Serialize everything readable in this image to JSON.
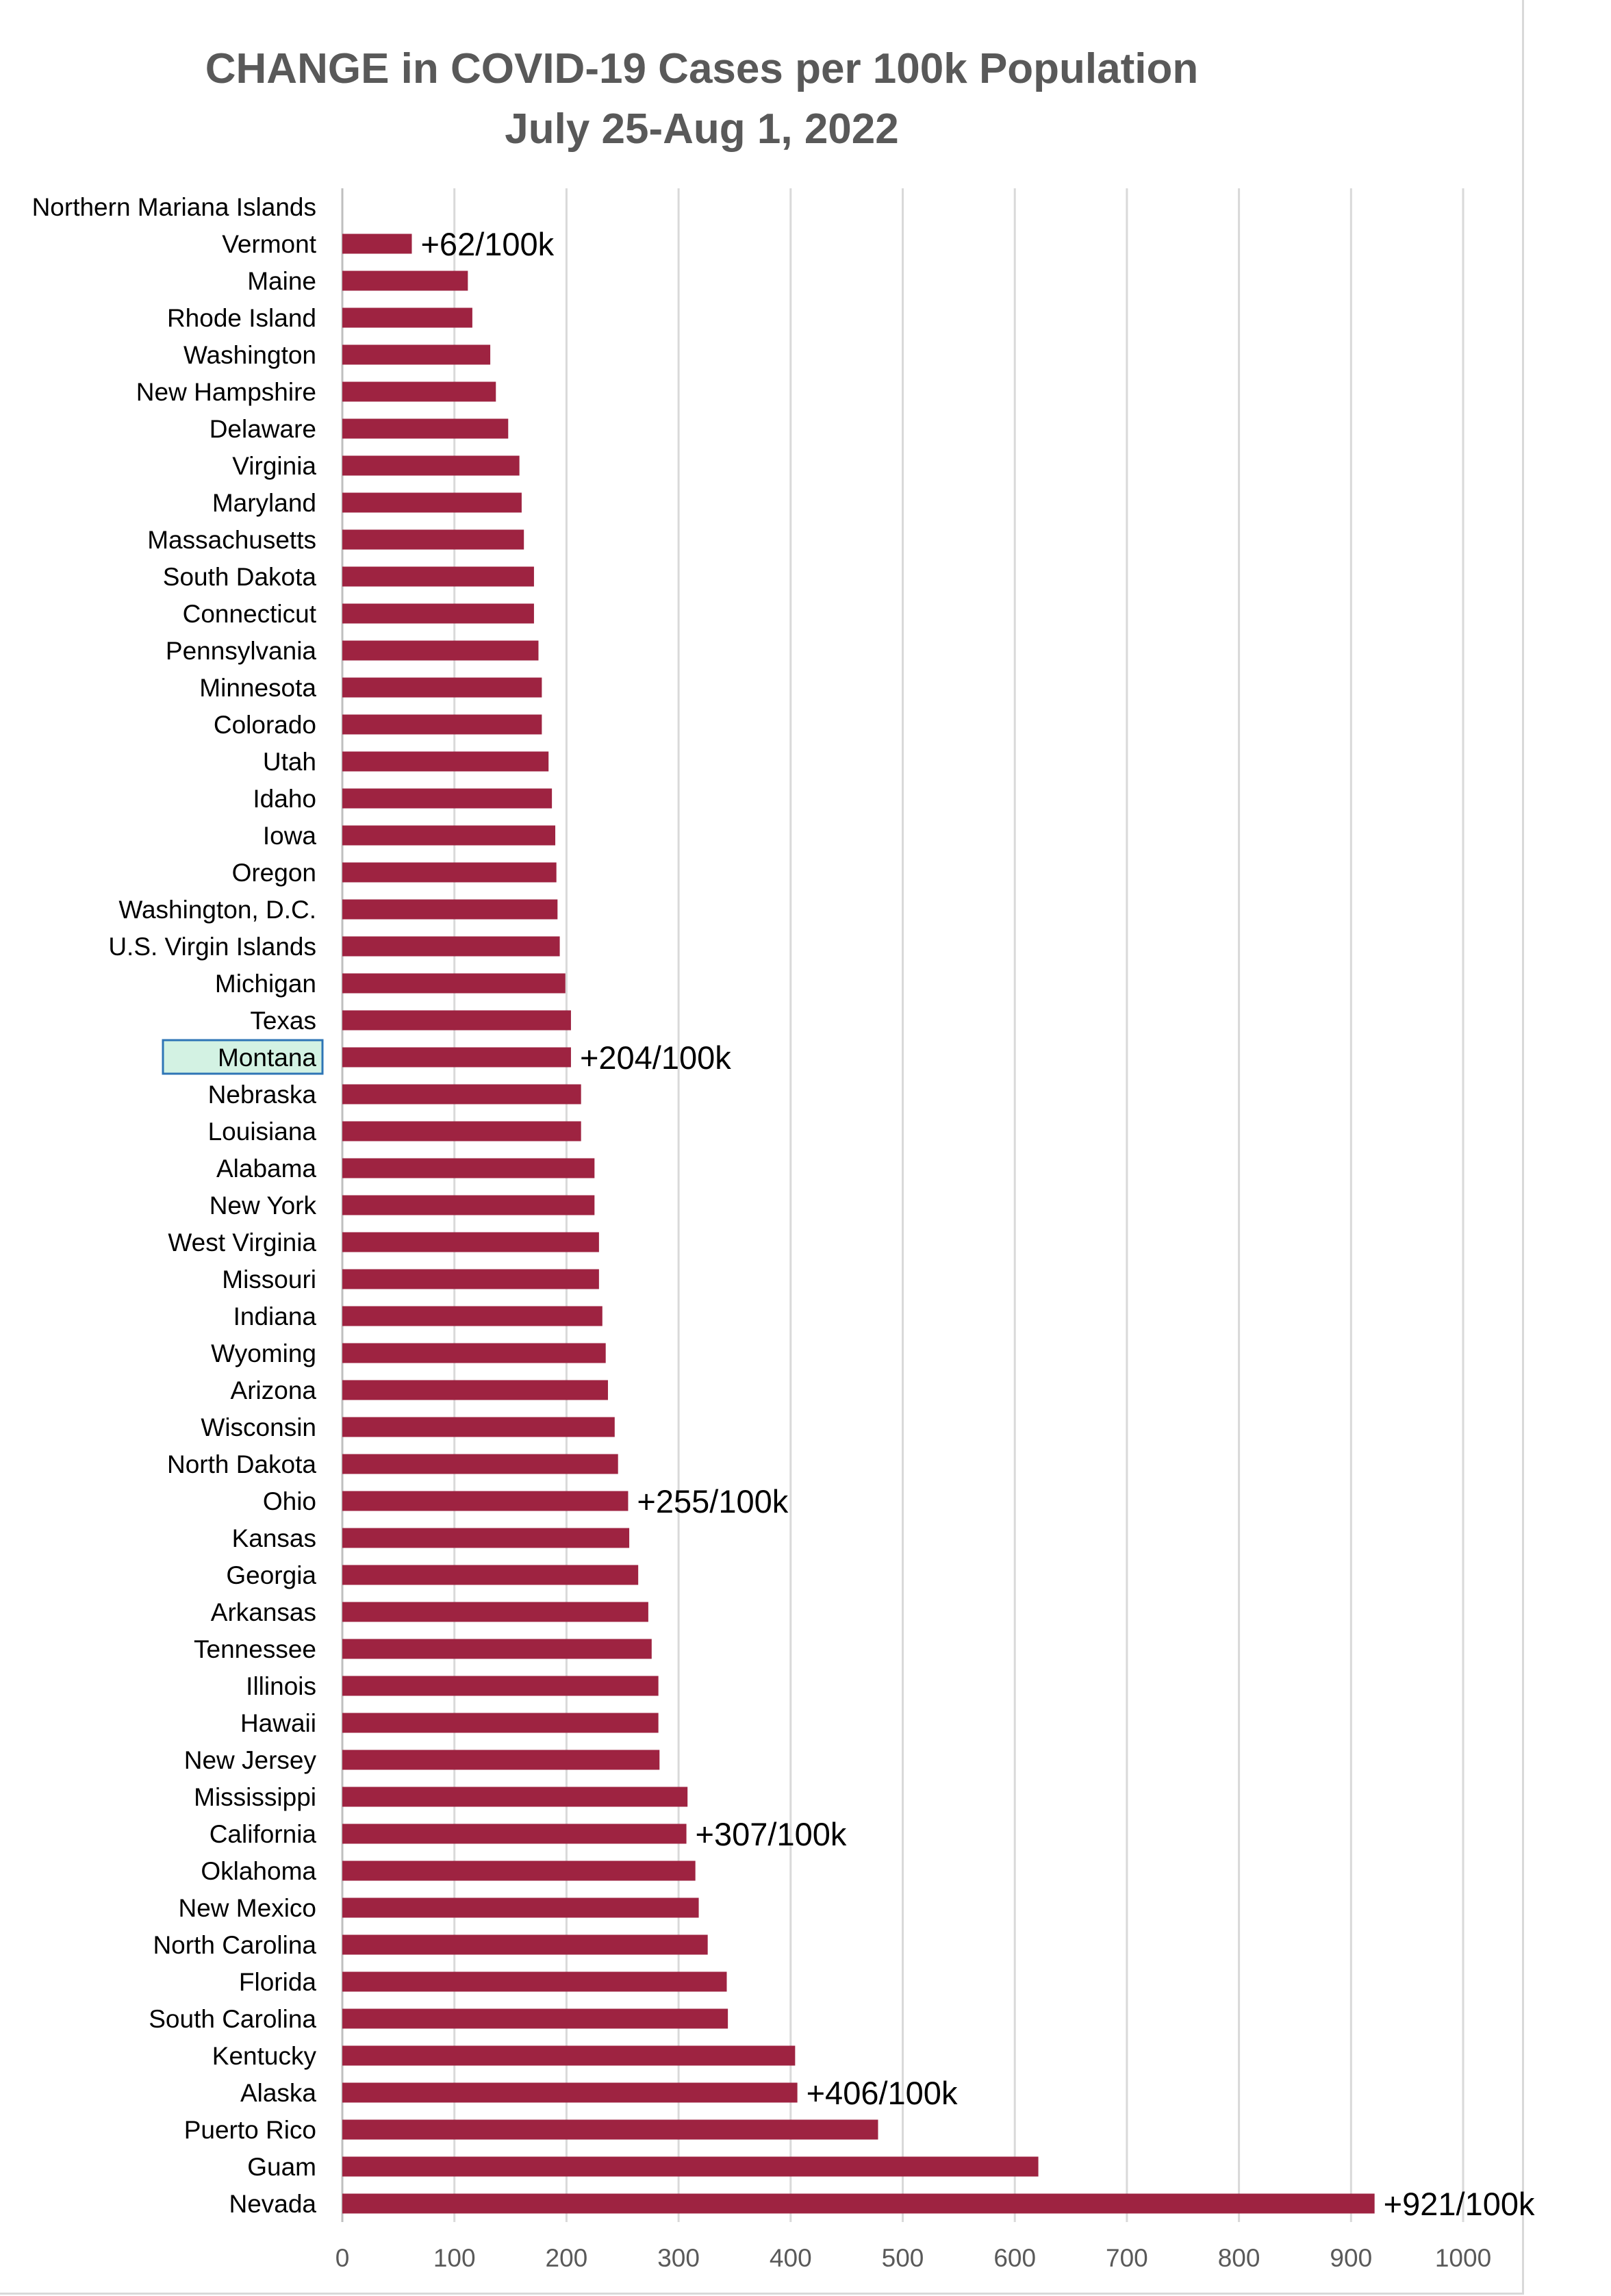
{
  "chart_data": {
    "type": "bar",
    "orientation": "horizontal",
    "title": "CHANGE in COVID-19 Cases per 100k Population",
    "subtitle": "July 25-Aug 1, 2022",
    "categories": [
      "Northern Mariana Islands",
      "Vermont",
      "Maine",
      "Rhode Island",
      "Washington",
      "New Hampshire",
      "Delaware",
      "Virginia",
      "Maryland",
      "Massachusetts",
      "South Dakota",
      "Connecticut",
      "Pennsylvania",
      "Minnesota",
      "Colorado",
      "Utah",
      "Idaho",
      "Iowa",
      "Oregon",
      "Washington, D.C.",
      "U.S. Virgin Islands",
      "Michigan",
      "Texas",
      "Montana",
      "Nebraska",
      "Louisiana",
      "Alabama",
      "New York",
      "West Virginia",
      "Missouri",
      "Indiana",
      "Wyoming",
      "Arizona",
      "Wisconsin",
      "North Dakota",
      "Ohio",
      "Kansas",
      "Georgia",
      "Arkansas",
      "Tennessee",
      "Illinois",
      "Hawaii",
      "New Jersey",
      "Mississippi",
      "California",
      "Oklahoma",
      "New Mexico",
      "North Carolina",
      "Florida",
      "South Carolina",
      "Kentucky",
      "Alaska",
      "Puerto Rico",
      "Guam",
      "Nevada"
    ],
    "values": [
      0,
      62,
      112,
      116,
      132,
      137,
      148,
      158,
      160,
      162,
      171,
      171,
      175,
      178,
      178,
      184,
      187,
      190,
      191,
      192,
      194,
      199,
      204,
      204,
      213,
      213,
      225,
      225,
      229,
      229,
      232,
      235,
      237,
      243,
      246,
      255,
      256,
      264,
      273,
      276,
      282,
      282,
      283,
      308,
      307,
      315,
      318,
      326,
      343,
      344,
      404,
      406,
      478,
      621,
      921
    ],
    "xlim": [
      0,
      1000
    ],
    "xticks": [
      "0",
      "100",
      "200",
      "300",
      "400",
      "500",
      "600",
      "700",
      "800",
      "900",
      "1000"
    ],
    "grid": "vertical",
    "bar_color": "#9e2341",
    "highlight_category": "Montana",
    "highlight_color": "#d3f2e3",
    "highlight_border": "#2e75b6",
    "annotations": [
      {
        "category": "Vermont",
        "text": "+62/100k"
      },
      {
        "category": "Montana",
        "text": "+204/100k"
      },
      {
        "category": "Ohio",
        "text": "+255/100k"
      },
      {
        "category": "California",
        "text": "+307/100k"
      },
      {
        "category": "Alaska",
        "text": "+406/100k"
      },
      {
        "category": "Nevada",
        "text": "+921/100k"
      }
    ]
  }
}
